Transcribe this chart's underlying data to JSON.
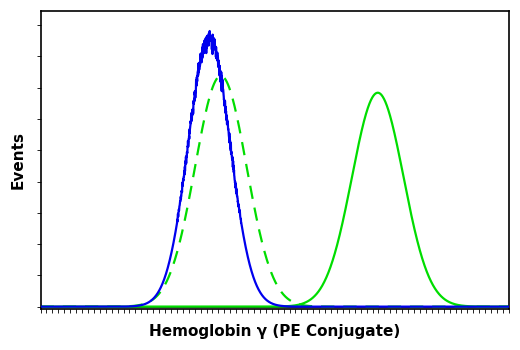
{
  "xlabel": "Hemoglobin γ (PE Conjugate)",
  "ylabel": "Events",
  "fig_bg_color": "#ffffff",
  "plot_bg_color": "#ffffff",
  "curve1": {
    "mu": 0.36,
    "sigma": 0.045,
    "amp": 0.95,
    "color": "#0000ee",
    "lw": 1.6,
    "linestyle": "-",
    "noise_scale": 0.015
  },
  "curve2": {
    "mu": 0.385,
    "sigma": 0.055,
    "amp": 0.82,
    "color": "#00dd00",
    "lw": 1.6,
    "linestyle": "--"
  },
  "curve3": {
    "mu": 0.72,
    "sigma": 0.055,
    "amp": 0.76,
    "color": "#00dd00",
    "lw": 1.6,
    "linestyle": "-"
  },
  "xlim": [
    0.0,
    1.0
  ],
  "ylim": [
    -0.01,
    1.05
  ],
  "xlabel_fontsize": 11,
  "ylabel_fontsize": 11,
  "xlabel_fontweight": "bold",
  "ylabel_fontweight": "bold",
  "xtick_count": 80,
  "ytick_count": 10
}
